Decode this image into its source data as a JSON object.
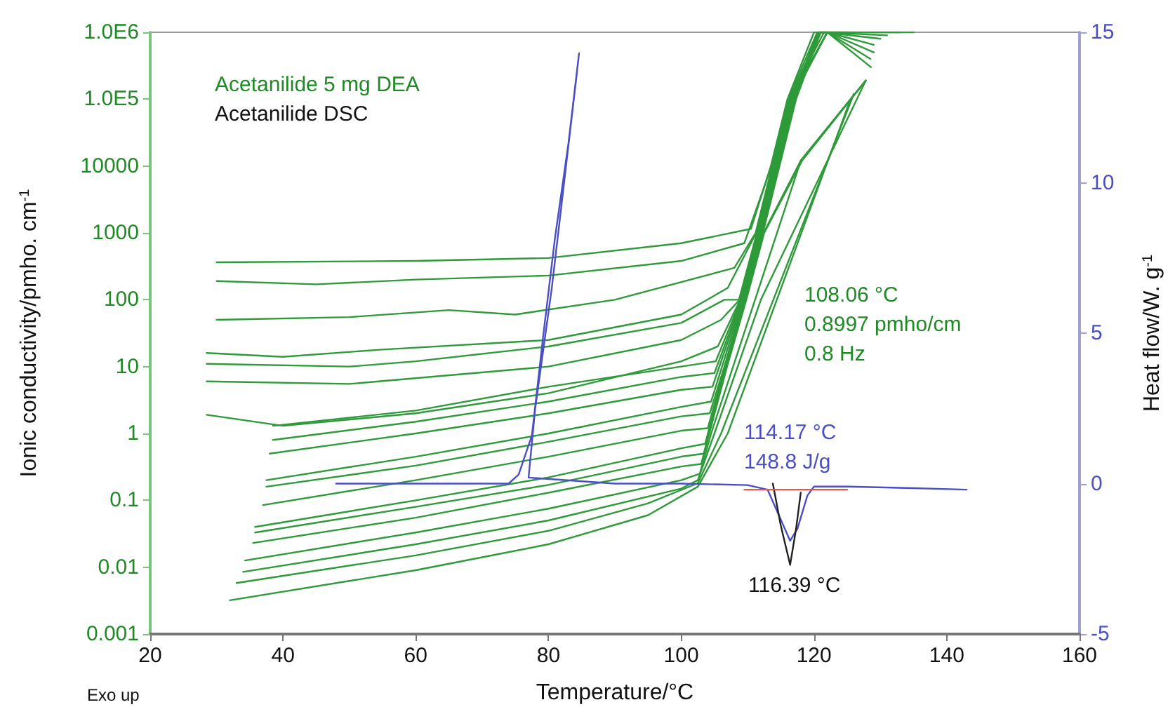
{
  "chart_data": {
    "type": "line",
    "xlabel": "Temperature/°C",
    "ylabel": "Ionic conductivity/pmho. cm$^{-1}$",
    "y2label": "Heat flow/W. g$^{-1}$",
    "xlim": [
      20,
      160
    ],
    "xticks": [
      20,
      40,
      60,
      80,
      100,
      120,
      140,
      160
    ],
    "ylim": [
      0.001,
      1000000
    ],
    "yticks": [
      0.001,
      0.01,
      0.1,
      1,
      10,
      100,
      1000,
      10000,
      {
        "value": 100000,
        "label": "1.0E5"
      },
      {
        "value": 1000000,
        "label": "1.0E6"
      }
    ],
    "y2lim": [
      -5,
      15
    ],
    "y2ticks": [
      -5,
      0,
      5,
      10,
      15
    ],
    "log": "y",
    "grid": false,
    "marker": "none",
    "line_style": "solid",
    "annotations": [
      "Acetanilide 5 mg DEA",
      "Acetanilide DSC",
      "108.06 °C\n0.8997 pmho/cm\n0.8 Hz",
      "114.17 °C\n148.8 J/g",
      "116.39 °C",
      "Exo up"
    ],
    "series": [
      {
        "color": "#2e9a3a",
        "x": [
          30,
          60,
          80,
          100,
          110.5,
          113.5,
          116,
          120,
          135
        ],
        "values": [
          363,
          380,
          420,
          700,
          1150,
          10000,
          100000,
          1000000,
          1000000
        ]
      },
      {
        "color": "#2e9a3a",
        "x": [
          30,
          45,
          60,
          80,
          100,
          109.5,
          113.6,
          116.1,
          120.5,
          133
        ],
        "values": [
          190,
          170,
          200,
          230,
          380,
          700,
          10000,
          100000,
          1000000,
          1000000
        ]
      },
      {
        "color": "#2e9a3a",
        "x": [
          30,
          50,
          65,
          75,
          90,
          108,
          111.2,
          113.7,
          116.2,
          121,
          131
        ],
        "values": [
          50,
          55,
          70,
          60,
          100,
          300,
          1000,
          10000,
          100000,
          1000000,
          900000
        ]
      },
      {
        "color": "#2e9a3a",
        "x": [
          28.5,
          40,
          55,
          80,
          100,
          107,
          111.3,
          113.8,
          116.3,
          121.5,
          130
        ],
        "values": [
          16,
          14,
          18,
          25,
          60,
          150,
          1000,
          10000,
          100000,
          1000000,
          800000
        ]
      },
      {
        "color": "#2e9a3a",
        "x": [
          28.5,
          50,
          60,
          80,
          100,
          106.5,
          108.7,
          111.4,
          113.9,
          116.4,
          122,
          129
        ],
        "values": [
          11,
          10,
          12,
          20,
          45,
          100,
          100,
          1000,
          10000,
          100000,
          1000000,
          650000
        ]
      },
      {
        "color": "#2e9a3a",
        "x": [
          28.5,
          50,
          80,
          100,
          106,
          108.8,
          111.5,
          114,
          116.5,
          122,
          129
        ],
        "values": [
          6,
          5.5,
          10,
          25,
          50,
          100,
          1000,
          10000,
          100000,
          1000000,
          500000
        ]
      },
      {
        "color": "#2e9a3a",
        "x": [
          28.5,
          40,
          60,
          80,
          100,
          105.5,
          108.9,
          111.6,
          114.1,
          116.6,
          122,
          128.5
        ],
        "values": [
          1.9,
          1.3,
          2,
          4,
          12,
          20,
          100,
          1000,
          10000,
          100000,
          1000000,
          400000
        ]
      },
      {
        "color": "#2e9a3a",
        "x": [
          38.5,
          60,
          80,
          100,
          105.2,
          109,
          111.7,
          114.2,
          116.7,
          122,
          128.6
        ],
        "values": [
          1.3,
          2.2,
          5,
          10,
          12,
          100,
          1000,
          10000,
          100000,
          1000000,
          300000
        ]
      },
      {
        "color": "#2e9a3a",
        "x": [
          38.5,
          60,
          80,
          100,
          105,
          109.1,
          111.8,
          114.3,
          116.8,
          120.5,
          126
        ],
        "values": [
          0.8,
          1.5,
          3,
          7,
          8,
          100,
          1000,
          10000,
          100000,
          1000000,
          1000000
        ]
      },
      {
        "color": "#2e9a3a",
        "x": [
          38,
          60,
          80,
          100,
          104.7,
          109.2,
          111.9,
          114.4,
          116.9,
          120.6,
          125
        ],
        "values": [
          0.5,
          1,
          2,
          4.5,
          5,
          100,
          1000,
          10000,
          100000,
          1000000,
          1000000
        ]
      },
      {
        "color": "#2e9a3a",
        "x": [
          37.5,
          60,
          80,
          100,
          104.5,
          109.3,
          112,
          114.5,
          117,
          120.7,
          124
        ],
        "values": [
          0.2,
          0.45,
          1,
          2.5,
          3,
          100,
          1000,
          10000,
          100000,
          1000000,
          1000000
        ]
      },
      {
        "color": "#2e9a3a",
        "x": [
          37.5,
          60,
          80,
          100,
          104.3,
          106.5,
          109.4,
          112.1,
          114.6,
          117.1,
          120.8,
          123
        ],
        "values": [
          0.16,
          0.33,
          0.75,
          1.8,
          2,
          10,
          100,
          1000,
          10000,
          100000,
          1000000,
          1000000
        ]
      },
      {
        "color": "#2e9a3a",
        "x": [
          37,
          60,
          80,
          100,
          104,
          106.6,
          109.5,
          112.2,
          114.7,
          117.2,
          120.9,
          122
        ],
        "values": [
          0.085,
          0.2,
          0.45,
          1.1,
          1.2,
          10,
          100,
          1000,
          10000,
          100000,
          1000000,
          1000000
        ]
      },
      {
        "color": "#2e9a3a",
        "x": [
          35.8,
          60,
          80,
          100,
          103.6,
          106.7,
          109.6,
          112.3,
          114.8,
          117.3,
          121,
          121.5
        ],
        "values": [
          0.04,
          0.1,
          0.22,
          0.6,
          0.7,
          10,
          100,
          1000,
          10000,
          100000,
          1000000,
          1000000
        ]
      },
      {
        "color": "#2e9a3a",
        "x": [
          35.8,
          60,
          80,
          100,
          103.4,
          106.8,
          109.7,
          112.4,
          118,
          127.8
        ],
        "values": [
          0.033,
          0.08,
          0.17,
          0.45,
          0.5,
          10,
          100,
          1000,
          12000,
          190000
        ]
      },
      {
        "color": "#2e9a3a",
        "x": [
          35.5,
          60,
          80,
          100,
          103,
          106.9,
          109.8,
          112.5,
          118.2,
          127.8
        ],
        "values": [
          0.023,
          0.055,
          0.13,
          0.32,
          0.35,
          10,
          100,
          1000,
          12000,
          190000
        ]
      },
      {
        "color": "#2e9a3a",
        "x": [
          34.3,
          60,
          80,
          100,
          102.8,
          104.5,
          118,
          127.8
        ],
        "values": [
          0.0126,
          0.033,
          0.075,
          0.2,
          0.25,
          1,
          12000,
          190000
        ]
      },
      {
        "color": "#2e9a3a",
        "x": [
          34,
          60,
          80,
          100,
          102.5,
          105,
          112,
          127.8
        ],
        "values": [
          0.0085,
          0.022,
          0.05,
          0.15,
          0.2,
          1,
          100,
          190000
        ]
      },
      {
        "color": "#2e9a3a",
        "x": [
          33,
          60,
          80,
          95,
          102.5,
          106,
          126
        ],
        "values": [
          0.0058,
          0.015,
          0.035,
          0.09,
          0.18,
          1,
          120000
        ]
      },
      {
        "color": "#2e9a3a",
        "x": [
          32,
          60,
          80,
          95,
          102.5,
          107,
          125.5
        ],
        "values": [
          0.0032,
          0.009,
          0.022,
          0.06,
          0.16,
          1,
          100000
        ]
      },
      {
        "color": "#4b4fc4",
        "axis": "y2",
        "x": [
          48,
          60,
          74,
          75.5,
          77.5,
          79.2,
          81,
          83,
          84.6,
          84.2,
          80.5,
          78,
          77,
          90,
          100,
          110,
          113,
          115,
          116.4,
          117.5,
          119,
          120,
          125,
          135,
          143
        ],
        "values": [
          0,
          0,
          0,
          0.3,
          1.6,
          4.9,
          8.2,
          11.3,
          14.3,
          13.5,
          6.5,
          2.5,
          0.2,
          0,
          0,
          -0.05,
          -0.2,
          -1.2,
          -1.9,
          -1.5,
          -0.4,
          -0.1,
          -0.1,
          -0.15,
          -0.2
        ]
      },
      {
        "color": "#222222",
        "axis": "y2",
        "x": [
          113.8,
          115,
          116.4,
          117.3,
          118
        ],
        "values": [
          0,
          -1.4,
          -2.7,
          -1.5,
          -0.3
        ]
      },
      {
        "color": "#e8574f",
        "axis": "y2",
        "x": [
          109.5,
          125
        ],
        "values": [
          -0.2,
          -0.2
        ]
      }
    ]
  }
}
